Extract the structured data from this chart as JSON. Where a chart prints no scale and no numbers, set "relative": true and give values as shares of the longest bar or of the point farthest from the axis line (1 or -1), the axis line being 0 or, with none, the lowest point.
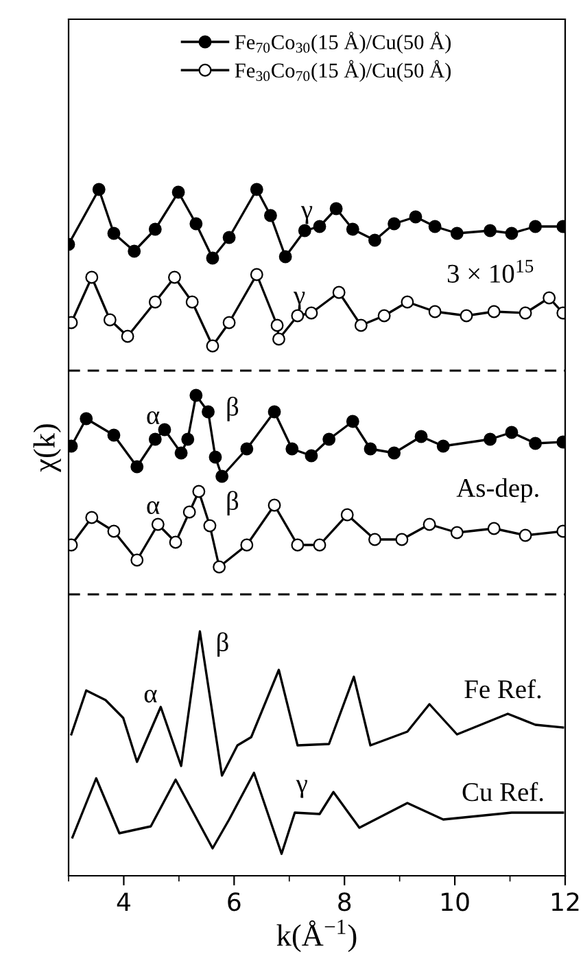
{
  "chart_data": {
    "type": "line",
    "relative": true,
    "xlabel": "k(Å$^{−1}$)",
    "ylabel": "χ(k)",
    "xlim": [
      3,
      12
    ],
    "xticks": [
      4,
      6,
      8,
      10,
      12
    ],
    "tick_labels": "x",
    "grid": false,
    "legend": "top",
    "line_style": "solid",
    "series": [
      {
        "name": "Fe$_{70}$Co$_{30}$(15 Å)/Cu(50 Å)",
        "color": "#000000",
        "marker": "circle",
        "x": [
          3.0,
          3.55,
          3.82,
          4.19,
          4.57,
          4.99,
          5.31,
          5.61,
          5.91,
          6.41,
          6.66,
          6.93,
          7.28,
          7.55,
          7.85,
          8.15,
          8.55,
          8.9,
          9.29,
          9.64,
          10.04,
          10.64,
          11.03,
          11.46,
          11.96
        ],
        "values": [
          0.92,
          1.0,
          0.936,
          0.91,
          0.942,
          0.996,
          0.95,
          0.9,
          0.93,
          1.0,
          0.962,
          0.902,
          0.94,
          0.946,
          0.972,
          0.942,
          0.926,
          0.95,
          0.96,
          0.946,
          0.936,
          0.94,
          0.936,
          0.946,
          0.946
        ]
      },
      {
        "name": "Fe$_{30}$Co$_{70}$(15 Å)/Cu(50 Å)",
        "color": "#000000",
        "marker": "circle",
        "x": [
          3.05,
          3.42,
          3.75,
          4.07,
          4.57,
          4.92,
          5.24,
          5.61,
          5.91,
          6.41,
          6.78,
          6.81,
          7.15,
          7.4,
          7.9,
          8.3,
          8.72,
          9.14,
          9.64,
          10.21,
          10.71,
          11.28,
          11.71,
          11.96
        ],
        "values": [
          0.806,
          0.872,
          0.81,
          0.786,
          0.836,
          0.872,
          0.836,
          0.772,
          0.806,
          0.876,
          0.802,
          0.782,
          0.816,
          0.82,
          0.85,
          0.802,
          0.816,
          0.836,
          0.822,
          0.816,
          0.822,
          0.82,
          0.842,
          0.82
        ]
      },
      {
        "color": "#000000",
        "marker": "circle",
        "x": [
          3.05,
          3.32,
          3.82,
          4.24,
          4.57,
          4.74,
          5.04,
          5.16,
          5.31,
          5.53,
          5.66,
          5.78,
          6.23,
          6.73,
          7.05,
          7.4,
          7.72,
          8.15,
          8.47,
          8.9,
          9.39,
          9.79,
          10.64,
          11.03,
          11.46,
          11.96
        ],
        "values": [
          0.626,
          0.666,
          0.642,
          0.596,
          0.636,
          0.65,
          0.616,
          0.636,
          0.7,
          0.676,
          0.61,
          0.582,
          0.622,
          0.676,
          0.622,
          0.612,
          0.636,
          0.662,
          0.622,
          0.616,
          0.64,
          0.626,
          0.636,
          0.646,
          0.63,
          0.632
        ]
      },
      {
        "color": "#000000",
        "marker": "circle",
        "x": [
          3.05,
          3.42,
          3.82,
          4.24,
          4.62,
          4.94,
          5.19,
          5.36,
          5.56,
          5.73,
          6.23,
          6.73,
          7.15,
          7.55,
          8.05,
          8.55,
          9.04,
          9.54,
          10.04,
          10.71,
          11.28,
          11.96
        ],
        "values": [
          0.482,
          0.522,
          0.502,
          0.46,
          0.512,
          0.486,
          0.53,
          0.56,
          0.51,
          0.45,
          0.482,
          0.54,
          0.482,
          0.482,
          0.526,
          0.49,
          0.49,
          0.512,
          0.5,
          0.506,
          0.496,
          0.502
        ]
      },
      {
        "color": "#000000",
        "marker": "none",
        "x": [
          3.05,
          3.32,
          3.67,
          3.99,
          4.24,
          4.67,
          5.04,
          5.38,
          5.78,
          6.06,
          6.31,
          6.81,
          7.15,
          7.72,
          8.17,
          8.47,
          9.14,
          9.54,
          10.04,
          10.96,
          11.46,
          11.96
        ],
        "values": [
          0.206,
          0.27,
          0.256,
          0.23,
          0.166,
          0.246,
          0.16,
          0.356,
          0.146,
          0.19,
          0.202,
          0.3,
          0.19,
          0.192,
          0.29,
          0.19,
          0.21,
          0.25,
          0.206,
          0.236,
          0.22,
          0.216
        ]
      },
      {
        "color": "#000000",
        "marker": "none",
        "x": [
          3.07,
          3.5,
          3.92,
          4.49,
          4.94,
          5.61,
          5.91,
          6.36,
          6.86,
          7.1,
          7.55,
          7.8,
          8.27,
          9.14,
          9.79,
          11.03,
          11.96
        ],
        "values": [
          0.056,
          0.142,
          0.062,
          0.072,
          0.14,
          0.04,
          0.082,
          0.15,
          0.032,
          0.092,
          0.09,
          0.122,
          0.07,
          0.106,
          0.082,
          0.092,
          0.092
        ]
      }
    ],
    "ref_lines": [
      {
        "axis": "y",
        "value": 0.736,
        "color": "#000000",
        "line_style": "dashed"
      },
      {
        "axis": "y",
        "value": 0.41,
        "color": "#000000",
        "line_style": "dashed"
      }
    ],
    "annotations": [
      "γ",
      "3 × 10$^{15}$",
      "γ",
      "α",
      "β",
      "α",
      "β",
      "As-dep.",
      "β",
      "α",
      "Fe Ref.",
      "γ",
      "Cu Ref."
    ]
  }
}
